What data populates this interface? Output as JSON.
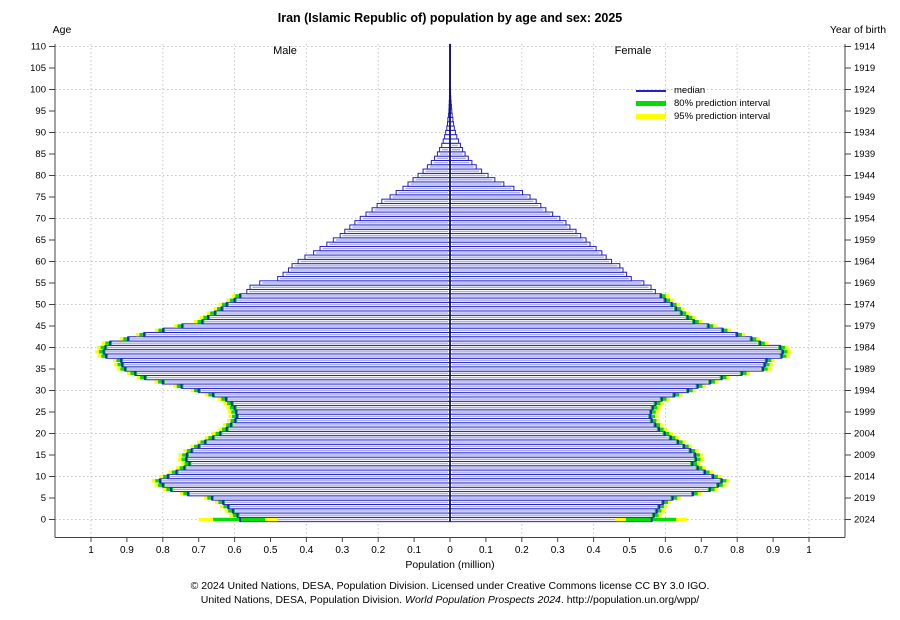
{
  "title": "Iran (Islamic Republic of) population by age and sex: 2025",
  "left_axis_label": "Age",
  "right_axis_label": "Year of birth",
  "male_label": "Male",
  "female_label": "Female",
  "xaxis_title": "Population (million)",
  "legend": {
    "median": "median",
    "pi80": "80% prediction interval",
    "pi95": "95% prediction interval"
  },
  "footer": {
    "line1": "© 2024 United Nations, DESA, Population Division. Licensed under Creative Commons license CC BY 3.0 IGO.",
    "line2_pre": "United Nations, DESA, Population Division. ",
    "line2_italic": "World Population Prospects 2024",
    "line2_post": ". http://population.un.org/wpp/"
  },
  "colors": {
    "median_blue": "#2121cd",
    "center_line": "#10106a",
    "pi80_green": "#00dd00",
    "pi95_yellow": "#ffff00",
    "grid": "#c6c6c6",
    "axis": "#444444",
    "bar_fill": "#ffffff",
    "bar_inner": "#a9aee8",
    "text": "#000000"
  },
  "chart_data": {
    "type": "bar",
    "variant": "population-pyramid-horizontal",
    "title": "Iran (Islamic Republic of) population by age and sex: 2025",
    "xlabel": "Population (million)",
    "ylabel_left": "Age",
    "ylabel_right": "Year of birth",
    "xlim": [
      0,
      1.05
    ],
    "grid": true,
    "legend_position": "upper-right-inside",
    "x_tick_labels": [
      "0",
      "0.1",
      "0.2",
      "0.3",
      "0.4",
      "0.5",
      "0.6",
      "0.7",
      "0.8",
      "0.9",
      "1"
    ],
    "x_grid_values": [
      0.2,
      0.4,
      0.6,
      0.8,
      1.0
    ],
    "age_min": 0,
    "age_max": 110,
    "age_tick_step": 5,
    "age_grid_step": 10,
    "year_tick_labels": [
      2024,
      2019,
      2014,
      2009,
      2004,
      1999,
      1994,
      1989,
      1984,
      1979,
      1974,
      1969,
      1964,
      1959,
      1954,
      1949,
      1944,
      1939,
      1934,
      1929,
      1924,
      1919,
      1914
    ],
    "series": [
      {
        "name": "male",
        "side": "left",
        "values": [
          0.585,
          0.592,
          0.605,
          0.618,
          0.632,
          0.663,
          0.73,
          0.777,
          0.8,
          0.808,
          0.786,
          0.762,
          0.74,
          0.726,
          0.735,
          0.733,
          0.72,
          0.7,
          0.682,
          0.66,
          0.64,
          0.622,
          0.61,
          0.598,
          0.594,
          0.596,
          0.6,
          0.608,
          0.624,
          0.66,
          0.7,
          0.748,
          0.8,
          0.85,
          0.877,
          0.905,
          0.913,
          0.916,
          0.958,
          0.965,
          0.96,
          0.947,
          0.897,
          0.852,
          0.799,
          0.746,
          0.69,
          0.674,
          0.655,
          0.636,
          0.622,
          0.6,
          0.585,
          0.566,
          0.557,
          0.53,
          0.48,
          0.465,
          0.45,
          0.44,
          0.423,
          0.404,
          0.38,
          0.362,
          0.343,
          0.325,
          0.306,
          0.293,
          0.279,
          0.265,
          0.25,
          0.234,
          0.217,
          0.203,
          0.19,
          0.167,
          0.15,
          0.131,
          0.117,
          0.103,
          0.089,
          0.075,
          0.063,
          0.052,
          0.043,
          0.035,
          0.029,
          0.023,
          0.019,
          0.015,
          0.012,
          0.009,
          0.007,
          0.006,
          0.004,
          0.003,
          0.0025,
          0.002,
          0.0015,
          0.001,
          0.0008,
          0.0006,
          0.0004,
          0.0003,
          0.0002,
          0.00015,
          0.0001,
          7e-05,
          5e-05,
          3e-05,
          2e-05
        ]
      },
      {
        "name": "female",
        "side": "right",
        "values": [
          0.562,
          0.568,
          0.576,
          0.583,
          0.594,
          0.62,
          0.677,
          0.724,
          0.747,
          0.757,
          0.733,
          0.71,
          0.69,
          0.675,
          0.685,
          0.683,
          0.67,
          0.652,
          0.635,
          0.615,
          0.598,
          0.582,
          0.572,
          0.562,
          0.558,
          0.56,
          0.565,
          0.573,
          0.59,
          0.625,
          0.663,
          0.69,
          0.725,
          0.757,
          0.813,
          0.872,
          0.877,
          0.882,
          0.924,
          0.927,
          0.92,
          0.864,
          0.84,
          0.8,
          0.76,
          0.72,
          0.68,
          0.662,
          0.645,
          0.63,
          0.618,
          0.6,
          0.588,
          0.572,
          0.56,
          0.54,
          0.505,
          0.492,
          0.482,
          0.473,
          0.45,
          0.435,
          0.423,
          0.407,
          0.39,
          0.379,
          0.364,
          0.351,
          0.334,
          0.323,
          0.306,
          0.286,
          0.267,
          0.253,
          0.24,
          0.223,
          0.202,
          0.178,
          0.15,
          0.125,
          0.106,
          0.088,
          0.073,
          0.061,
          0.051,
          0.042,
          0.035,
          0.029,
          0.024,
          0.019,
          0.015,
          0.012,
          0.01,
          0.008,
          0.006,
          0.005,
          0.004,
          0.003,
          0.0022,
          0.0016,
          0.0012,
          0.0009,
          0.0007,
          0.0005,
          0.0004,
          0.0003,
          0.0002,
          0.00012,
          8e-05,
          5e-05,
          3e-05
        ]
      }
    ],
    "prediction_intervals": {
      "cap80": 0.013,
      "cap95": 0.023,
      "inner": 0.006,
      "min_age": 1,
      "max_age": 52,
      "age0": {
        "male": {
          "p80": [
            0.515,
            0.66
          ],
          "p95": [
            0.48,
            0.7
          ]
        },
        "female": {
          "p80": [
            0.49,
            0.63
          ],
          "p95": [
            0.46,
            0.66
          ]
        }
      }
    }
  }
}
